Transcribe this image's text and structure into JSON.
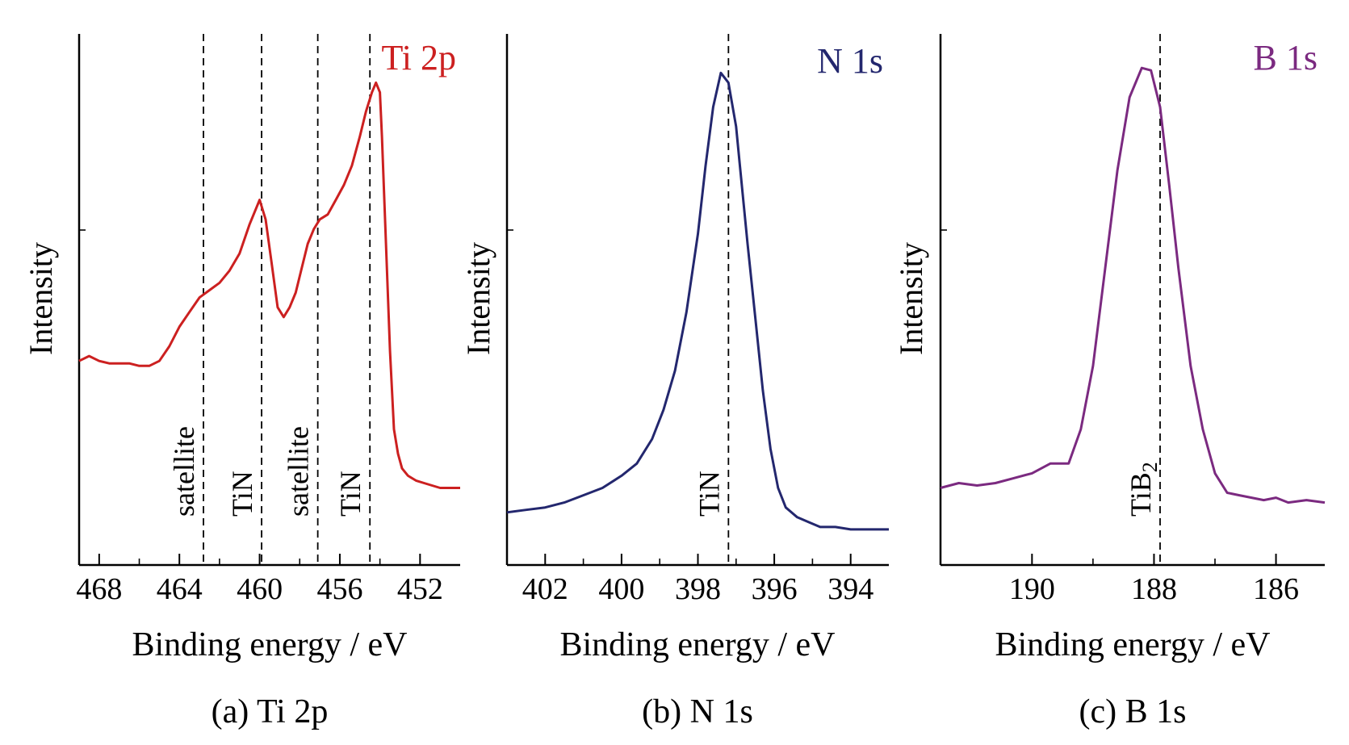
{
  "chart_data": [
    {
      "type": "line",
      "panel_label": "(a) Ti 2p",
      "title": "Ti 2p",
      "title_color": "#cc2020",
      "line_color": "#cc2020",
      "xlabel": "Binding energy / eV",
      "ylabel": "Intensity",
      "x_reversed": true,
      "xlim": [
        469,
        450
      ],
      "ylim": [
        0,
        1
      ],
      "xticks": [
        468,
        464,
        460,
        456,
        452
      ],
      "xtick_labels": [
        "468",
        "464",
        "460",
        "456",
        "452"
      ],
      "series": [
        {
          "x": [
            469.0,
            468.5,
            468.0,
            467.5,
            467.0,
            466.5,
            466.0,
            465.5,
            465.0,
            464.5,
            464.0,
            463.5,
            463.0,
            462.5,
            462.0,
            461.5,
            461.0,
            460.5,
            460.0,
            459.7,
            459.4,
            459.1,
            458.8,
            458.5,
            458.2,
            457.9,
            457.6,
            457.3,
            457.0,
            456.6,
            456.2,
            455.8,
            455.4,
            455.0,
            454.7,
            454.4,
            454.2,
            454.0,
            453.9,
            453.7,
            453.5,
            453.3,
            453.1,
            452.9,
            452.6,
            452.2,
            451.8,
            451.4,
            451.0,
            450.5,
            450.0
          ],
          "y": [
            0.36,
            0.37,
            0.36,
            0.355,
            0.355,
            0.355,
            0.35,
            0.35,
            0.36,
            0.39,
            0.43,
            0.46,
            0.49,
            0.505,
            0.52,
            0.545,
            0.58,
            0.64,
            0.69,
            0.65,
            0.56,
            0.47,
            0.45,
            0.47,
            0.5,
            0.55,
            0.6,
            0.63,
            0.65,
            0.66,
            0.69,
            0.72,
            0.76,
            0.82,
            0.87,
            0.91,
            0.93,
            0.91,
            0.82,
            0.6,
            0.38,
            0.22,
            0.17,
            0.14,
            0.125,
            0.115,
            0.11,
            0.105,
            0.1,
            0.1,
            0.1
          ]
        }
      ],
      "reference_lines": [
        {
          "x": 462.8,
          "label": "satellite"
        },
        {
          "x": 459.9,
          "label": "TiN"
        },
        {
          "x": 457.1,
          "label": "satellite"
        },
        {
          "x": 454.5,
          "label": "TiN"
        }
      ],
      "grid": false,
      "legend": "none"
    },
    {
      "type": "line",
      "panel_label": "(b) N 1s",
      "title": "N 1s",
      "title_color": "#23276e",
      "line_color": "#23276e",
      "xlabel": "Binding energy / eV",
      "ylabel": "Intensity",
      "x_reversed": true,
      "xlim": [
        403,
        393
      ],
      "ylim": [
        0,
        1
      ],
      "xticks": [
        402,
        400,
        398,
        396,
        394
      ],
      "xtick_labels": [
        "402",
        "400",
        "398",
        "396",
        "394"
      ],
      "series": [
        {
          "x": [
            403.0,
            402.5,
            402.0,
            401.5,
            401.0,
            400.5,
            400.0,
            399.6,
            399.2,
            398.9,
            398.6,
            398.3,
            398.0,
            397.8,
            397.6,
            397.4,
            397.2,
            397.0,
            396.9,
            396.7,
            396.5,
            396.3,
            396.1,
            395.9,
            395.7,
            395.4,
            395.1,
            394.8,
            394.4,
            394.0,
            393.5,
            393.0
          ],
          "y": [
            0.05,
            0.055,
            0.06,
            0.07,
            0.085,
            0.1,
            0.125,
            0.15,
            0.2,
            0.26,
            0.34,
            0.46,
            0.62,
            0.76,
            0.88,
            0.95,
            0.93,
            0.84,
            0.76,
            0.6,
            0.45,
            0.3,
            0.18,
            0.1,
            0.06,
            0.04,
            0.03,
            0.02,
            0.02,
            0.015,
            0.015,
            0.015
          ]
        }
      ],
      "reference_lines": [
        {
          "x": 397.2,
          "label": "TiN"
        }
      ],
      "grid": false,
      "legend": "none"
    },
    {
      "type": "line",
      "panel_label": "(c) B 1s",
      "title": "B 1s",
      "title_color": "#7b2a80",
      "line_color": "#7b2a80",
      "xlabel": "Binding energy / eV",
      "ylabel": "Intensity",
      "x_reversed": true,
      "xlim": [
        191.5,
        185.2
      ],
      "ylim": [
        0,
        1
      ],
      "xticks": [
        190,
        188,
        186
      ],
      "xtick_labels": [
        "190",
        "188",
        "186"
      ],
      "series": [
        {
          "x": [
            191.5,
            191.2,
            190.9,
            190.6,
            190.3,
            190.0,
            189.7,
            189.4,
            189.2,
            189.0,
            188.8,
            188.6,
            188.4,
            188.2,
            188.05,
            187.9,
            187.75,
            187.6,
            187.4,
            187.2,
            187.0,
            186.8,
            186.6,
            186.4,
            186.2,
            186.0,
            185.8,
            185.5,
            185.2
          ],
          "y": [
            0.1,
            0.11,
            0.105,
            0.11,
            0.12,
            0.13,
            0.15,
            0.15,
            0.22,
            0.35,
            0.55,
            0.75,
            0.9,
            0.96,
            0.955,
            0.88,
            0.72,
            0.55,
            0.35,
            0.22,
            0.13,
            0.09,
            0.085,
            0.08,
            0.075,
            0.08,
            0.07,
            0.075,
            0.07
          ]
        }
      ],
      "reference_lines": [
        {
          "x": 187.9,
          "label": "TiB",
          "label_sub": "2"
        }
      ],
      "grid": false,
      "legend": "none"
    }
  ]
}
